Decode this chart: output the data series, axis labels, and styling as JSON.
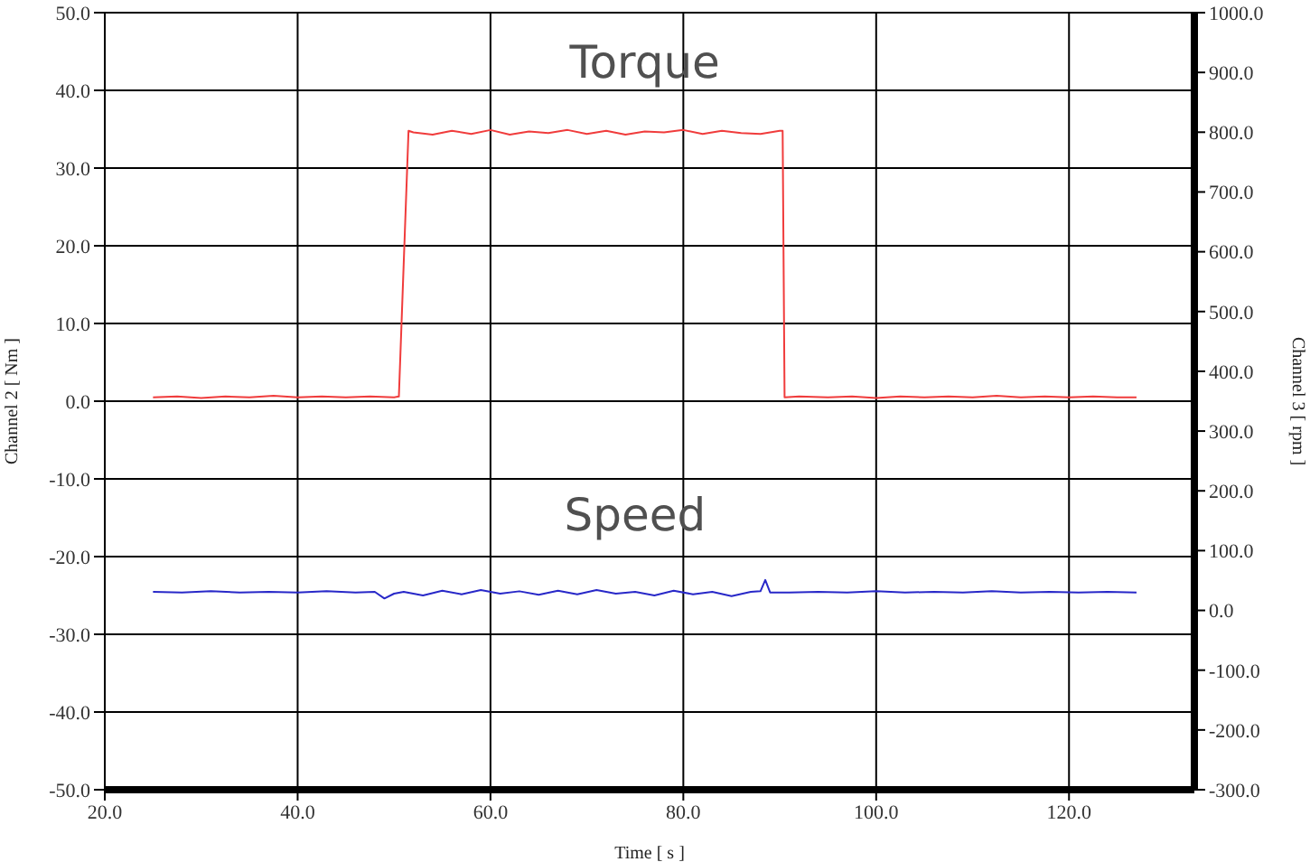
{
  "chart_data": {
    "type": "line",
    "xlabel": "Time [ s ]",
    "ylabel": "Channel 2 [ Nm ]",
    "y2label": "Channel 3 [ rpm ]",
    "xlim": [
      20,
      133
    ],
    "xticks": [
      {
        "value": 20,
        "label": "20.0"
      },
      {
        "value": 40,
        "label": "40.0"
      },
      {
        "value": 60,
        "label": "60.0"
      },
      {
        "value": 80,
        "label": "80.0"
      },
      {
        "value": 100,
        "label": "100.0"
      },
      {
        "value": 120,
        "label": "120.0"
      }
    ],
    "ylim": [
      -50,
      50
    ],
    "yticks": [
      {
        "value": -50,
        "label": "-50.0"
      },
      {
        "value": -40,
        "label": "-40.0"
      },
      {
        "value": -30,
        "label": "-30.0"
      },
      {
        "value": -20,
        "label": "-20.0"
      },
      {
        "value": -10,
        "label": "-10.0"
      },
      {
        "value": 0,
        "label": "0.0"
      },
      {
        "value": 10,
        "label": "10.0"
      },
      {
        "value": 20,
        "label": "20.0"
      },
      {
        "value": 30,
        "label": "30.0"
      },
      {
        "value": 40,
        "label": "40.0"
      },
      {
        "value": 50,
        "label": "50.0"
      }
    ],
    "y2lim": [
      -300,
      1000
    ],
    "y2ticks": [
      {
        "value": -300,
        "label": "-300.0"
      },
      {
        "value": -200,
        "label": "-200.0"
      },
      {
        "value": -100,
        "label": "-100.0"
      },
      {
        "value": 0,
        "label": "0.0"
      },
      {
        "value": 100,
        "label": "100.0"
      },
      {
        "value": 200,
        "label": "200.0"
      },
      {
        "value": 300,
        "label": "300.0"
      },
      {
        "value": 400,
        "label": "400.0"
      },
      {
        "value": 500,
        "label": "500.0"
      },
      {
        "value": 600,
        "label": "600.0"
      },
      {
        "value": 700,
        "label": "700.0"
      },
      {
        "value": 800,
        "label": "800.0"
      },
      {
        "value": 900,
        "label": "900.0"
      },
      {
        "value": 1000,
        "label": "1000.0"
      }
    ],
    "grid": true,
    "marker": "none",
    "line_style": "solid",
    "series": [
      {
        "name": "Torque",
        "color": "#f03c3c",
        "x": [
          25,
          27.5,
          30,
          32.5,
          35,
          37.5,
          40,
          42.5,
          45,
          47.5,
          50,
          50.5,
          51.5,
          52,
          54,
          56,
          58,
          60,
          62,
          64,
          66,
          68,
          70,
          72,
          74,
          76,
          78,
          80,
          82,
          84,
          86,
          88,
          90,
          90.3,
          90.5,
          92,
          95,
          97.5,
          100,
          102.5,
          105,
          107.5,
          110,
          112.5,
          115,
          117.5,
          120,
          122.5,
          125,
          127
        ],
        "values": [
          0.5,
          0.6,
          0.4,
          0.6,
          0.5,
          0.7,
          0.5,
          0.6,
          0.5,
          0.6,
          0.5,
          0.6,
          34.8,
          34.6,
          34.3,
          34.8,
          34.4,
          34.9,
          34.3,
          34.7,
          34.5,
          34.9,
          34.4,
          34.8,
          34.3,
          34.7,
          34.6,
          34.9,
          34.4,
          34.8,
          34.5,
          34.4,
          34.8,
          34.8,
          0.5,
          0.6,
          0.5,
          0.6,
          0.4,
          0.6,
          0.5,
          0.6,
          0.5,
          0.7,
          0.5,
          0.6,
          0.5,
          0.6,
          0.5,
          0.5
        ]
      },
      {
        "name": "Speed",
        "color": "#2828c8",
        "axis": "y2",
        "x": [
          25,
          28,
          31,
          34,
          37,
          40,
          43,
          46,
          48,
          49,
          50,
          51,
          53,
          55,
          57,
          59,
          61,
          63,
          65,
          67,
          69,
          71,
          73,
          75,
          77,
          79,
          81,
          83,
          85,
          87,
          88,
          88.5,
          89,
          91,
          94,
          97,
          100,
          103,
          106,
          109,
          112,
          115,
          118,
          121,
          124,
          127
        ],
        "values": [
          31,
          30,
          32,
          30,
          31,
          30,
          32,
          30,
          31,
          20,
          28,
          31,
          25,
          33,
          27,
          34,
          28,
          32,
          26,
          33,
          27,
          34,
          28,
          31,
          25,
          33,
          27,
          31,
          24,
          31,
          32,
          51,
          30,
          30,
          31,
          30,
          32,
          30,
          31,
          30,
          32,
          30,
          31,
          30,
          31,
          30
        ]
      }
    ]
  }
}
